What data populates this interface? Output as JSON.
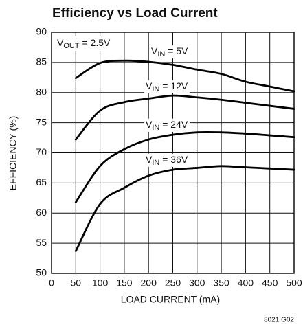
{
  "chart_data": {
    "type": "line",
    "title": "Efficiency vs Load Current",
    "xlabel": "LOAD CURRENT (mA)",
    "ylabel": "EFFICIENCY (%)",
    "annotation": [
      "V",
      "OUT",
      " = 2.5V"
    ],
    "footnote": "8021 G02",
    "x": [
      50,
      100,
      150,
      200,
      250,
      300,
      350,
      400,
      450,
      500
    ],
    "series": [
      {
        "label": [
          "V",
          "IN",
          " = 5V"
        ],
        "color": "#000000",
        "values": [
          82.4,
          84.9,
          85.3,
          85.1,
          84.6,
          83.8,
          83.1,
          81.8,
          81.0,
          80.2
        ]
      },
      {
        "label": [
          "V",
          "IN",
          " = 12V"
        ],
        "color": "#000000",
        "values": [
          72.2,
          77.0,
          78.4,
          79.0,
          79.5,
          79.2,
          78.8,
          78.3,
          77.8,
          77.3
        ]
      },
      {
        "label": [
          "V",
          "IN",
          " = 24V"
        ],
        "color": "#000000",
        "values": [
          61.8,
          67.8,
          70.6,
          72.2,
          73.0,
          73.4,
          73.4,
          73.2,
          72.9,
          72.6
        ]
      },
      {
        "label": [
          "V",
          "IN",
          " = 36V"
        ],
        "color": "#000000",
        "values": [
          53.7,
          61.5,
          64.2,
          66.2,
          67.2,
          67.5,
          67.8,
          67.6,
          67.4,
          67.2
        ]
      }
    ],
    "xlim": [
      0,
      500
    ],
    "xticks": [
      0,
      50,
      100,
      150,
      200,
      250,
      300,
      350,
      400,
      450,
      500
    ],
    "ylim": [
      50,
      90
    ],
    "yticks": [
      50,
      55,
      60,
      65,
      70,
      75,
      80,
      85,
      90
    ],
    "grid": true
  }
}
